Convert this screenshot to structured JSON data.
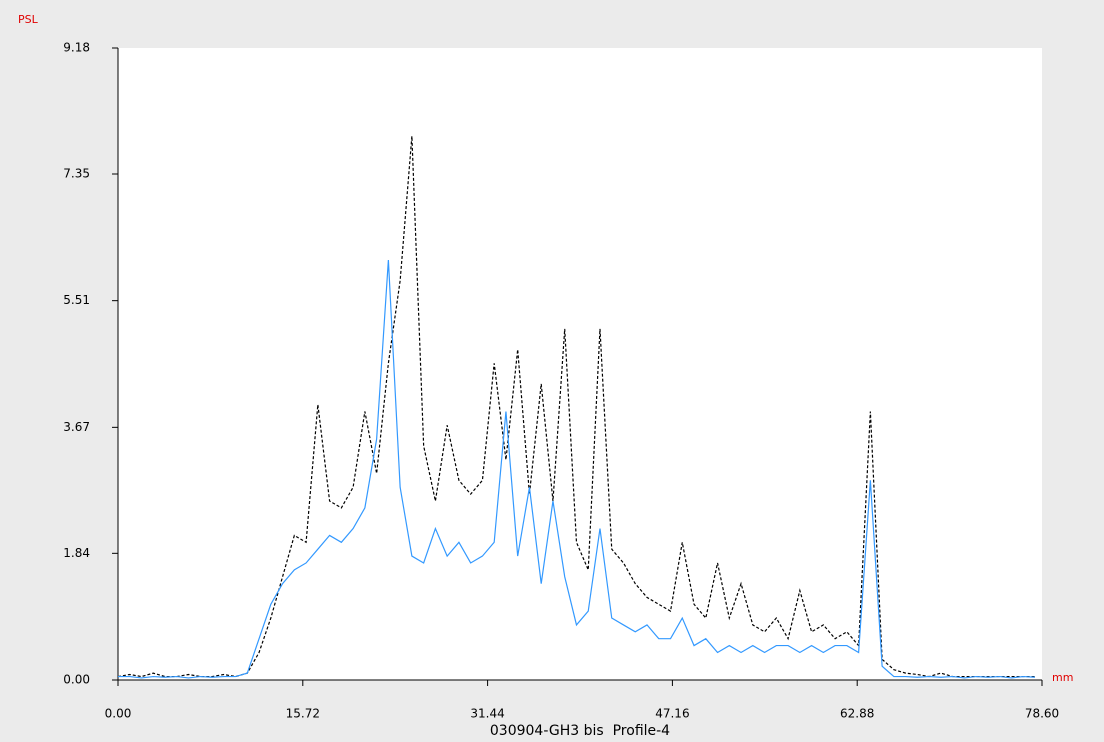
{
  "chart_data": {
    "type": "line",
    "title": "030904-GH3 bis  Profile-4",
    "x_label": "mm",
    "y_label": "PSL",
    "x": [
      0,
      1,
      2,
      3,
      4,
      5,
      6,
      7,
      8,
      9,
      10,
      11,
      12,
      13,
      14,
      15,
      16,
      17,
      18,
      19,
      20,
      21,
      22,
      23,
      24,
      25,
      26,
      27,
      28,
      29,
      30,
      31,
      32,
      33,
      34,
      35,
      36,
      37,
      38,
      39,
      40,
      41,
      42,
      43,
      44,
      45,
      46,
      47,
      48,
      49,
      50,
      51,
      52,
      53,
      54,
      55,
      56,
      57,
      58,
      59,
      60,
      61,
      62,
      63,
      64,
      65,
      66,
      67,
      68,
      69,
      70,
      71,
      72,
      73,
      74,
      75,
      76,
      77,
      78
    ],
    "series": [
      {
        "color": "#000000",
        "style": "dashed",
        "values": [
          0.05,
          0.08,
          0.05,
          0.1,
          0.05,
          0.05,
          0.08,
          0.05,
          0.05,
          0.08,
          0.05,
          0.1,
          0.4,
          0.9,
          1.5,
          2.1,
          2.0,
          4.0,
          2.6,
          2.5,
          2.8,
          3.9,
          3.0,
          4.6,
          5.8,
          7.9,
          3.4,
          2.6,
          3.7,
          2.9,
          2.7,
          2.9,
          4.6,
          3.2,
          4.8,
          2.7,
          4.3,
          2.6,
          5.1,
          2.0,
          1.6,
          5.1,
          1.9,
          1.7,
          1.4,
          1.2,
          1.1,
          1.0,
          2.0,
          1.1,
          0.9,
          1.7,
          0.9,
          1.4,
          0.8,
          0.7,
          0.9,
          0.6,
          1.3,
          0.7,
          0.8,
          0.6,
          0.7,
          0.5,
          3.9,
          0.3,
          0.15,
          0.1,
          0.08,
          0.05,
          0.1,
          0.05,
          0.05,
          0.05,
          0.05,
          0.05,
          0.05,
          0.05,
          0.05
        ]
      },
      {
        "color": "#3399ff",
        "style": "solid",
        "values": [
          0.05,
          0.05,
          0.03,
          0.05,
          0.04,
          0.05,
          0.03,
          0.05,
          0.04,
          0.05,
          0.05,
          0.1,
          0.6,
          1.1,
          1.4,
          1.6,
          1.7,
          1.9,
          2.1,
          2.0,
          2.2,
          2.5,
          3.5,
          6.1,
          2.8,
          1.8,
          1.7,
          2.2,
          1.8,
          2.0,
          1.7,
          1.8,
          2.0,
          3.9,
          1.8,
          2.8,
          1.4,
          2.6,
          1.5,
          0.8,
          1.0,
          2.2,
          0.9,
          0.8,
          0.7,
          0.8,
          0.6,
          0.6,
          0.9,
          0.5,
          0.6,
          0.4,
          0.5,
          0.4,
          0.5,
          0.4,
          0.5,
          0.5,
          0.4,
          0.5,
          0.4,
          0.5,
          0.5,
          0.4,
          2.9,
          0.2,
          0.05,
          0.05,
          0.04,
          0.05,
          0.04,
          0.05,
          0.03,
          0.05,
          0.04,
          0.05,
          0.03,
          0.05,
          0.04
        ]
      }
    ],
    "xlim": [
      0,
      78.6
    ],
    "ylim": [
      0,
      9.18
    ],
    "xticks": [
      {
        "value": 0,
        "label": "0.00"
      },
      15.72,
      31.44,
      47.16,
      62.88,
      {
        "value": 78.6,
        "label": "78.60"
      }
    ],
    "yticks": [
      {
        "value": 0,
        "label": "0.00"
      },
      1.84,
      3.67,
      5.51,
      7.35,
      9.18
    ]
  }
}
